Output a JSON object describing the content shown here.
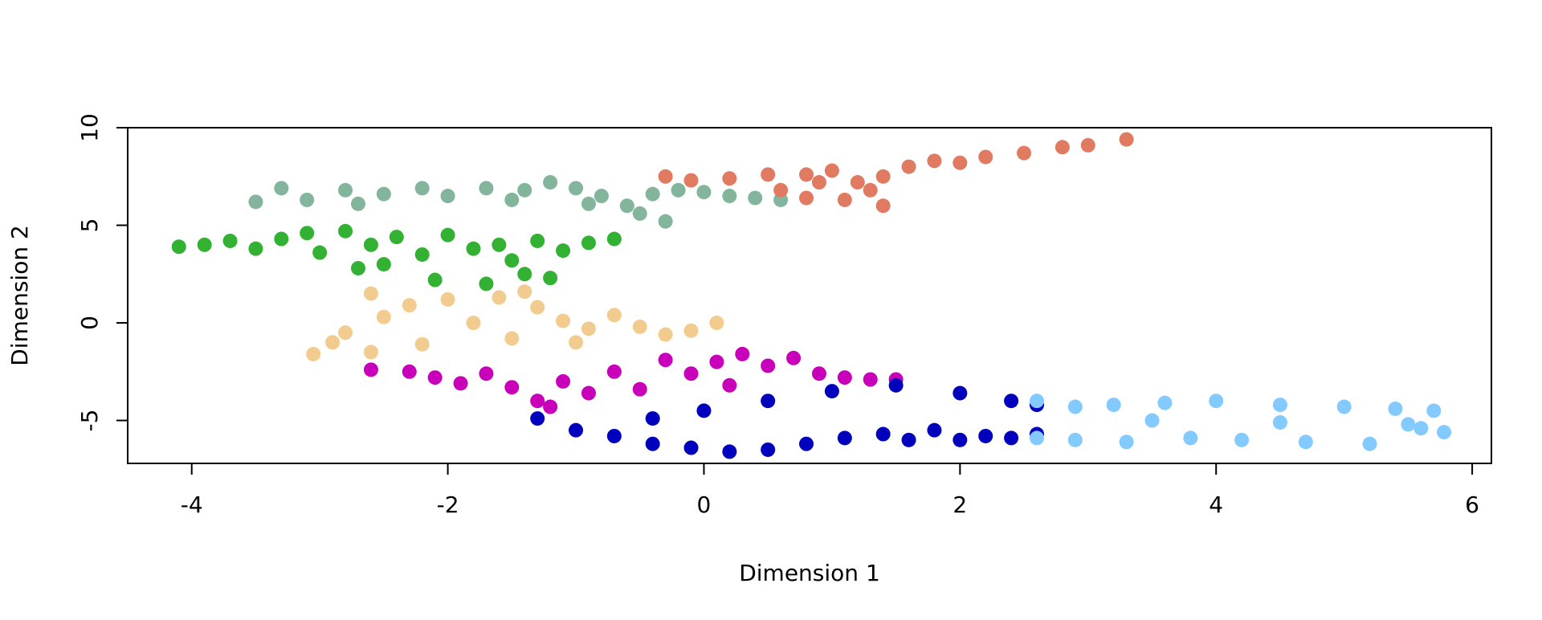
{
  "chart_data": {
    "type": "scatter",
    "title": "",
    "xlabel": "Dimension 1",
    "ylabel": "Dimension 2",
    "xlim": [
      -4.5,
      6.15
    ],
    "ylim": [
      -7.2,
      10.0
    ],
    "xticks": [
      -4,
      -2,
      0,
      2,
      4,
      6
    ],
    "yticks": [
      -5,
      0,
      5,
      10
    ],
    "xtick_labels": [
      "-4",
      "-2",
      "0",
      "2",
      "4",
      "6"
    ],
    "ytick_labels": [
      "-5",
      "0",
      "5",
      "10"
    ],
    "grid": false,
    "legend": "none",
    "series": [
      {
        "color": "#82b59c",
        "points": [
          [
            -3.5,
            6.2
          ],
          [
            -3.3,
            6.9
          ],
          [
            -3.1,
            6.3
          ],
          [
            -2.8,
            6.8
          ],
          [
            -2.5,
            6.6
          ],
          [
            -2.2,
            6.9
          ],
          [
            -2.0,
            6.5
          ],
          [
            -1.7,
            6.9
          ],
          [
            -1.4,
            6.8
          ],
          [
            -1.2,
            7.2
          ],
          [
            -1.0,
            6.9
          ],
          [
            -0.8,
            6.5
          ],
          [
            -0.6,
            6.0
          ],
          [
            -0.4,
            6.6
          ],
          [
            -0.2,
            6.8
          ],
          [
            0.0,
            6.7
          ],
          [
            0.2,
            6.5
          ],
          [
            0.4,
            6.4
          ],
          [
            0.6,
            6.3
          ],
          [
            -0.9,
            6.1
          ],
          [
            -0.5,
            5.6
          ],
          [
            -0.3,
            5.2
          ],
          [
            -1.5,
            6.3
          ],
          [
            -2.7,
            6.1
          ]
        ]
      },
      {
        "color": "#e07b61",
        "points": [
          [
            -0.3,
            7.5
          ],
          [
            -0.1,
            7.3
          ],
          [
            0.2,
            7.4
          ],
          [
            0.5,
            7.6
          ],
          [
            0.8,
            7.6
          ],
          [
            1.0,
            7.8
          ],
          [
            1.2,
            7.2
          ],
          [
            1.4,
            7.5
          ],
          [
            1.6,
            8.0
          ],
          [
            1.8,
            8.3
          ],
          [
            2.0,
            8.2
          ],
          [
            2.2,
            8.5
          ],
          [
            2.5,
            8.7
          ],
          [
            2.8,
            9.0
          ],
          [
            3.0,
            9.1
          ],
          [
            3.3,
            9.4
          ],
          [
            0.8,
            6.4
          ],
          [
            1.1,
            6.3
          ],
          [
            1.4,
            6.0
          ],
          [
            0.6,
            6.8
          ],
          [
            1.3,
            6.8
          ],
          [
            0.9,
            7.2
          ]
        ]
      },
      {
        "color": "#33b133",
        "points": [
          [
            -4.1,
            3.9
          ],
          [
            -3.9,
            4.0
          ],
          [
            -3.7,
            4.2
          ],
          [
            -3.5,
            3.8
          ],
          [
            -3.3,
            4.3
          ],
          [
            -3.1,
            4.6
          ],
          [
            -3.0,
            3.6
          ],
          [
            -2.8,
            4.7
          ],
          [
            -2.6,
            4.0
          ],
          [
            -2.5,
            3.0
          ],
          [
            -2.4,
            4.4
          ],
          [
            -2.2,
            3.5
          ],
          [
            -2.0,
            4.5
          ],
          [
            -1.8,
            3.8
          ],
          [
            -1.6,
            4.0
          ],
          [
            -1.5,
            3.2
          ],
          [
            -1.4,
            2.5
          ],
          [
            -1.3,
            4.2
          ],
          [
            -1.1,
            3.7
          ],
          [
            -1.2,
            2.3
          ],
          [
            -0.9,
            4.1
          ],
          [
            -0.7,
            4.3
          ],
          [
            -2.1,
            2.2
          ],
          [
            -1.7,
            2.0
          ],
          [
            -2.7,
            2.8
          ]
        ]
      },
      {
        "color": "#f2cc8f",
        "points": [
          [
            -3.05,
            -1.6
          ],
          [
            -2.9,
            -1.0
          ],
          [
            -2.8,
            -0.5
          ],
          [
            -2.6,
            -1.5
          ],
          [
            -2.5,
            0.3
          ],
          [
            -2.3,
            0.9
          ],
          [
            -2.2,
            -1.1
          ],
          [
            -2.0,
            1.2
          ],
          [
            -1.8,
            0.0
          ],
          [
            -1.6,
            1.3
          ],
          [
            -1.5,
            -0.8
          ],
          [
            -1.3,
            0.8
          ],
          [
            -1.1,
            0.1
          ],
          [
            -0.9,
            -0.3
          ],
          [
            -0.7,
            0.4
          ],
          [
            -0.5,
            -0.2
          ],
          [
            -0.3,
            -0.6
          ],
          [
            -0.1,
            -0.4
          ],
          [
            0.1,
            0.0
          ],
          [
            -1.0,
            -1.0
          ],
          [
            -2.6,
            1.5
          ],
          [
            -1.4,
            1.6
          ]
        ]
      },
      {
        "color": "#c900b9",
        "points": [
          [
            -2.6,
            -2.4
          ],
          [
            -2.3,
            -2.5
          ],
          [
            -2.1,
            -2.8
          ],
          [
            -1.9,
            -3.1
          ],
          [
            -1.7,
            -2.6
          ],
          [
            -1.5,
            -3.3
          ],
          [
            -1.3,
            -4.0
          ],
          [
            -1.1,
            -3.0
          ],
          [
            -0.9,
            -3.6
          ],
          [
            -0.7,
            -2.5
          ],
          [
            -0.5,
            -3.4
          ],
          [
            -0.3,
            -1.9
          ],
          [
            -0.1,
            -2.6
          ],
          [
            0.1,
            -2.0
          ],
          [
            0.3,
            -1.6
          ],
          [
            0.5,
            -2.2
          ],
          [
            0.7,
            -1.8
          ],
          [
            0.9,
            -2.6
          ],
          [
            1.1,
            -2.8
          ],
          [
            1.3,
            -2.9
          ],
          [
            1.5,
            -2.9
          ],
          [
            -1.2,
            -4.3
          ],
          [
            0.2,
            -3.2
          ]
        ]
      },
      {
        "color": "#0000bd",
        "points": [
          [
            -1.3,
            -4.9
          ],
          [
            -1.0,
            -5.5
          ],
          [
            -0.7,
            -5.8
          ],
          [
            -0.4,
            -6.2
          ],
          [
            -0.1,
            -6.4
          ],
          [
            0.2,
            -6.6
          ],
          [
            0.5,
            -6.5
          ],
          [
            0.8,
            -6.2
          ],
          [
            1.1,
            -5.9
          ],
          [
            1.4,
            -5.7
          ],
          [
            1.6,
            -6.0
          ],
          [
            1.8,
            -5.5
          ],
          [
            2.0,
            -6.0
          ],
          [
            2.2,
            -5.8
          ],
          [
            2.4,
            -5.9
          ],
          [
            2.6,
            -5.7
          ],
          [
            0.0,
            -4.5
          ],
          [
            0.5,
            -4.0
          ],
          [
            1.0,
            -3.5
          ],
          [
            1.5,
            -3.2
          ],
          [
            2.0,
            -3.6
          ],
          [
            2.4,
            -4.0
          ],
          [
            2.6,
            -4.2
          ],
          [
            -0.4,
            -4.9
          ]
        ]
      },
      {
        "color": "#82caff",
        "points": [
          [
            2.6,
            -4.0
          ],
          [
            2.6,
            -5.9
          ],
          [
            2.9,
            -4.3
          ],
          [
            2.9,
            -6.0
          ],
          [
            3.2,
            -4.2
          ],
          [
            3.3,
            -6.1
          ],
          [
            3.6,
            -4.1
          ],
          [
            3.8,
            -5.9
          ],
          [
            4.0,
            -4.0
          ],
          [
            4.2,
            -6.0
          ],
          [
            4.5,
            -4.2
          ],
          [
            4.7,
            -6.1
          ],
          [
            5.0,
            -4.3
          ],
          [
            5.2,
            -6.2
          ],
          [
            5.4,
            -4.4
          ],
          [
            5.6,
            -5.4
          ],
          [
            5.78,
            -5.6
          ],
          [
            5.5,
            -5.2
          ],
          [
            3.5,
            -5.0
          ],
          [
            4.5,
            -5.1
          ],
          [
            5.7,
            -4.5
          ]
        ]
      }
    ]
  }
}
